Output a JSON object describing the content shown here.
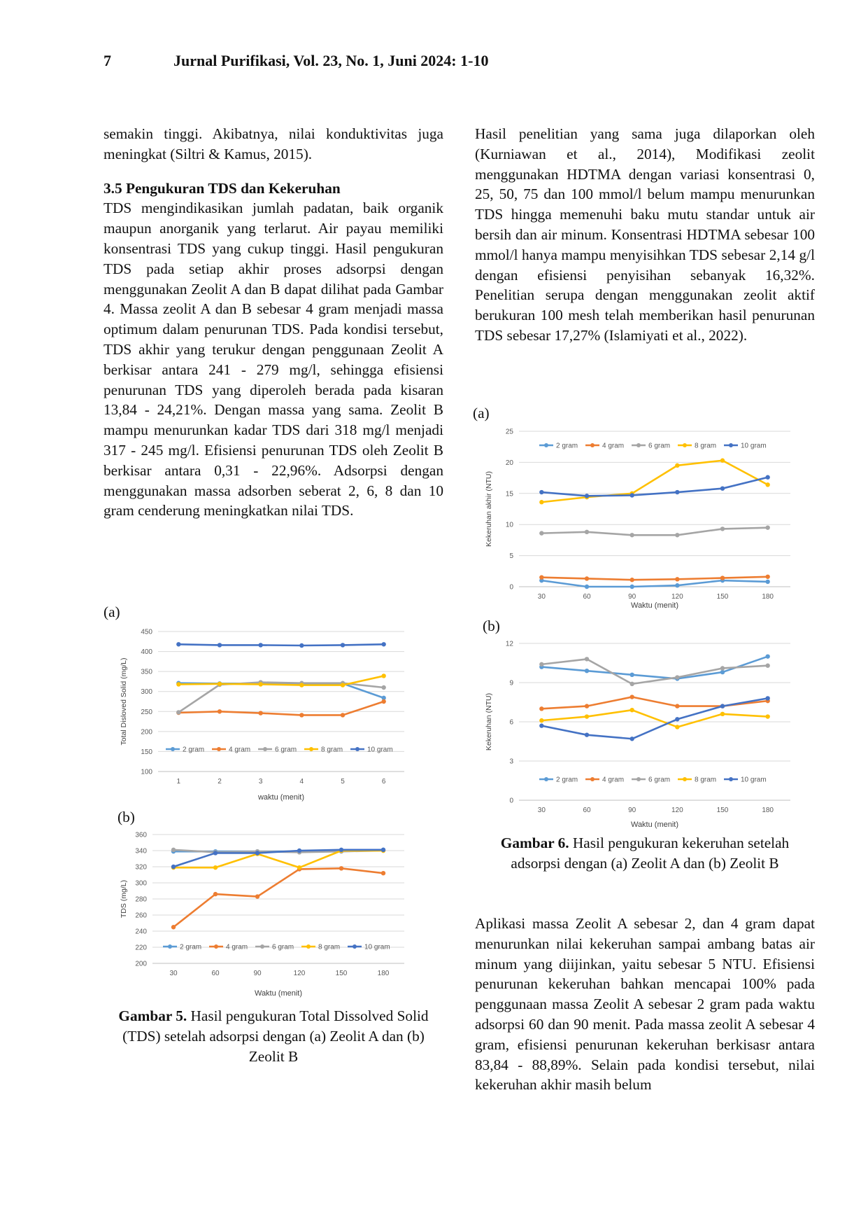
{
  "header": {
    "page_number": "7",
    "journal": "Jurnal Purifikasi, Vol. 23, No. 1, Juni 2024: 1-10"
  },
  "left": {
    "p1": "semakin tinggi. Akibatnya, nilai konduktivitas juga meningkat (Siltri & Kamus, 2015).",
    "heading": "3.5 Pengukuran TDS dan Kekeruhan",
    "p2": "TDS mengindikasikan jumlah padatan, baik organik maupun anorganik yang terlarut. Air payau memiliki konsentrasi TDS yang cukup tinggi. Hasil pengukuran TDS pada setiap akhir proses adsorpsi dengan menggunakan Zeolit A dan B dapat dilihat pada Gambar 4. Massa zeolit A dan B sebesar 4 gram menjadi massa optimum dalam penurunan TDS. Pada kondisi tersebut, TDS akhir yang terukur dengan penggunaan Zeolit A berkisar antara 241 - 279 mg/l, sehingga efisiensi penurunan TDS yang diperoleh berada pada kisaran 13,84 - 24,21%. Dengan massa yang sama. Zeolit B mampu menurunkan kadar TDS dari 318 mg/l menjadi 317 - 245 mg/l. Efisiensi penurunan TDS oleh Zeolit B berkisar antara 0,31 - 22,96%. Adsorpsi dengan menggunakan massa adsorben seberat 2, 6, 8 dan 10 gram cenderung meningkatkan nilai TDS."
  },
  "right": {
    "p1": "Hasil penelitian yang sama juga dilaporkan oleh (Kurniawan et al., 2014), Modifikasi zeolit menggunakan HDTMA dengan variasi konsentrasi 0, 25, 50, 75 dan 100 mmol/l belum mampu menurunkan TDS hingga memenuhi baku mutu standar untuk air bersih dan air minum. Konsentrasi HDTMA sebesar 100 mmol/l hanya mampu menyisihkan TDS sebesar 2,14 g/l dengan efisiensi penyisihan sebanyak 16,32%. Penelitian serupa dengan menggunakan zeolit aktif berukuran 100 mesh telah memberikan hasil penurunan TDS sebesar 17,27% (Islamiyati et al., 2022).",
    "p2": "Aplikasi massa Zeolit A sebesar 2, dan 4 gram dapat menurunkan nilai kekeruhan sampai ambang batas air minum yang diijinkan, yaitu sebesar 5 NTU. Efisiensi penurunan kekeruhan bahkan mencapai 100% pada penggunaan massa Zeolit A sebesar 2 gram pada waktu adsorpsi 60 dan 90 menit. Pada massa zeolit A sebesar 4 gram, efisiensi penurunan kekeruhan berkisasr antara 83,84 - 88,89%. Selain pada kondisi tersebut, nilai kekeruhan akhir masih belum"
  },
  "labels": {
    "a": "(a)",
    "b": "(b)"
  },
  "captions": {
    "fig5_bold": "Gambar 5.",
    "fig5_text": " Hasil pengukuran Total Dissolved Solid (TDS) setelah adsorpsi dengan (a) Zeolit A dan (b) Zeolit B",
    "fig6_bold": "Gambar 6.",
    "fig6_text": " Hasil pengukuran kekeruhan setelah adsorpsi dengan (a) Zeolit A dan (b) Zeolit B"
  },
  "chart_data": [
    {
      "id": "fig5a",
      "type": "line",
      "x": [
        "1",
        "2",
        "3",
        "4",
        "5",
        "6"
      ],
      "xlabel": "waktu (menit)",
      "ylabel": "Total Disloved Solid (mg/L)",
      "ylim": [
        100,
        450
      ],
      "yticks": [
        100,
        150,
        200,
        250,
        300,
        350,
        400,
        450
      ],
      "legend": "bottom",
      "series": [
        {
          "name": "2 gram",
          "color": "#5B9BD5",
          "values": [
            321,
            320,
            320,
            319,
            320,
            284
          ]
        },
        {
          "name": "4 gram",
          "color": "#ED7D31",
          "values": [
            247,
            250,
            246,
            241,
            241,
            275
          ]
        },
        {
          "name": "6 gram",
          "color": "#A5A5A5",
          "values": [
            248,
            317,
            323,
            321,
            321,
            310
          ]
        },
        {
          "name": "8 gram",
          "color": "#FFC000",
          "values": [
            318,
            319,
            318,
            316,
            316,
            339
          ]
        },
        {
          "name": "10 gram",
          "color": "#4472C4",
          "values": [
            418,
            416,
            416,
            415,
            416,
            418
          ]
        }
      ]
    },
    {
      "id": "fig5b",
      "type": "line",
      "x": [
        "30",
        "60",
        "90",
        "120",
        "150",
        "180"
      ],
      "xlabel": "Waktu (menit)",
      "ylabel": "TDS (mg/L)",
      "ylim": [
        200,
        360
      ],
      "yticks": [
        200,
        220,
        240,
        260,
        280,
        300,
        320,
        340,
        360
      ],
      "legend": "bottom",
      "series": [
        {
          "name": "2 gram",
          "color": "#5B9BD5",
          "values": [
            339,
            339,
            339,
            339,
            340,
            341
          ]
        },
        {
          "name": "4 gram",
          "color": "#ED7D31",
          "values": [
            245,
            286,
            283,
            317,
            318,
            312
          ]
        },
        {
          "name": "6 gram",
          "color": "#A5A5A5",
          "values": [
            341,
            338,
            339,
            338,
            339,
            340
          ]
        },
        {
          "name": "8 gram",
          "color": "#FFC000",
          "values": [
            319,
            319,
            336,
            319,
            340,
            340
          ]
        },
        {
          "name": "10 gram",
          "color": "#4472C4",
          "values": [
            320,
            337,
            337,
            340,
            341,
            341
          ]
        }
      ]
    },
    {
      "id": "fig6a",
      "type": "line",
      "x": [
        "30",
        "60",
        "90",
        "120",
        "150",
        "180"
      ],
      "xlabel": "Waktu (menit)",
      "ylabel": "Kekeruhan akhir (NTU)",
      "ylim": [
        0,
        25
      ],
      "yticks": [
        0,
        5,
        10,
        15,
        20,
        25
      ],
      "legend": "top",
      "series": [
        {
          "name": "2 gram",
          "color": "#5B9BD5",
          "values": [
            1.0,
            0.0,
            0.0,
            0.2,
            1.0,
            0.8
          ]
        },
        {
          "name": "4 gram",
          "color": "#ED7D31",
          "values": [
            1.5,
            1.3,
            1.1,
            1.2,
            1.4,
            1.6
          ]
        },
        {
          "name": "6 gram",
          "color": "#A5A5A5",
          "values": [
            8.6,
            8.8,
            8.3,
            8.3,
            9.3,
            9.5
          ]
        },
        {
          "name": "8 gram",
          "color": "#FFC000",
          "values": [
            13.6,
            14.4,
            15.0,
            19.5,
            20.3,
            16.4
          ]
        },
        {
          "name": "10 gram",
          "color": "#4472C4",
          "values": [
            15.2,
            14.6,
            14.7,
            15.2,
            15.8,
            17.6
          ]
        }
      ]
    },
    {
      "id": "fig6b",
      "type": "line",
      "x": [
        "30",
        "60",
        "90",
        "120",
        "150",
        "180"
      ],
      "xlabel": "Waktu (menit)",
      "ylabel": "Kekeruhan (NTU)",
      "ylim": [
        0,
        12
      ],
      "yticks": [
        0,
        3,
        6,
        9,
        12
      ],
      "legend": "bottom",
      "series": [
        {
          "name": "2 gram",
          "color": "#5B9BD5",
          "values": [
            10.2,
            9.9,
            9.6,
            9.3,
            9.8,
            11.0
          ]
        },
        {
          "name": "4 gram",
          "color": "#ED7D31",
          "values": [
            7.0,
            7.2,
            7.9,
            7.2,
            7.2,
            7.6
          ]
        },
        {
          "name": "6 gram",
          "color": "#A5A5A5",
          "values": [
            10.4,
            10.8,
            8.9,
            9.4,
            10.1,
            10.3
          ]
        },
        {
          "name": "8 gram",
          "color": "#FFC000",
          "values": [
            6.1,
            6.4,
            6.9,
            5.6,
            6.6,
            6.4
          ]
        },
        {
          "name": "10 gram",
          "color": "#4472C4",
          "values": [
            5.7,
            5.0,
            4.7,
            6.2,
            7.2,
            7.8
          ]
        }
      ]
    }
  ]
}
